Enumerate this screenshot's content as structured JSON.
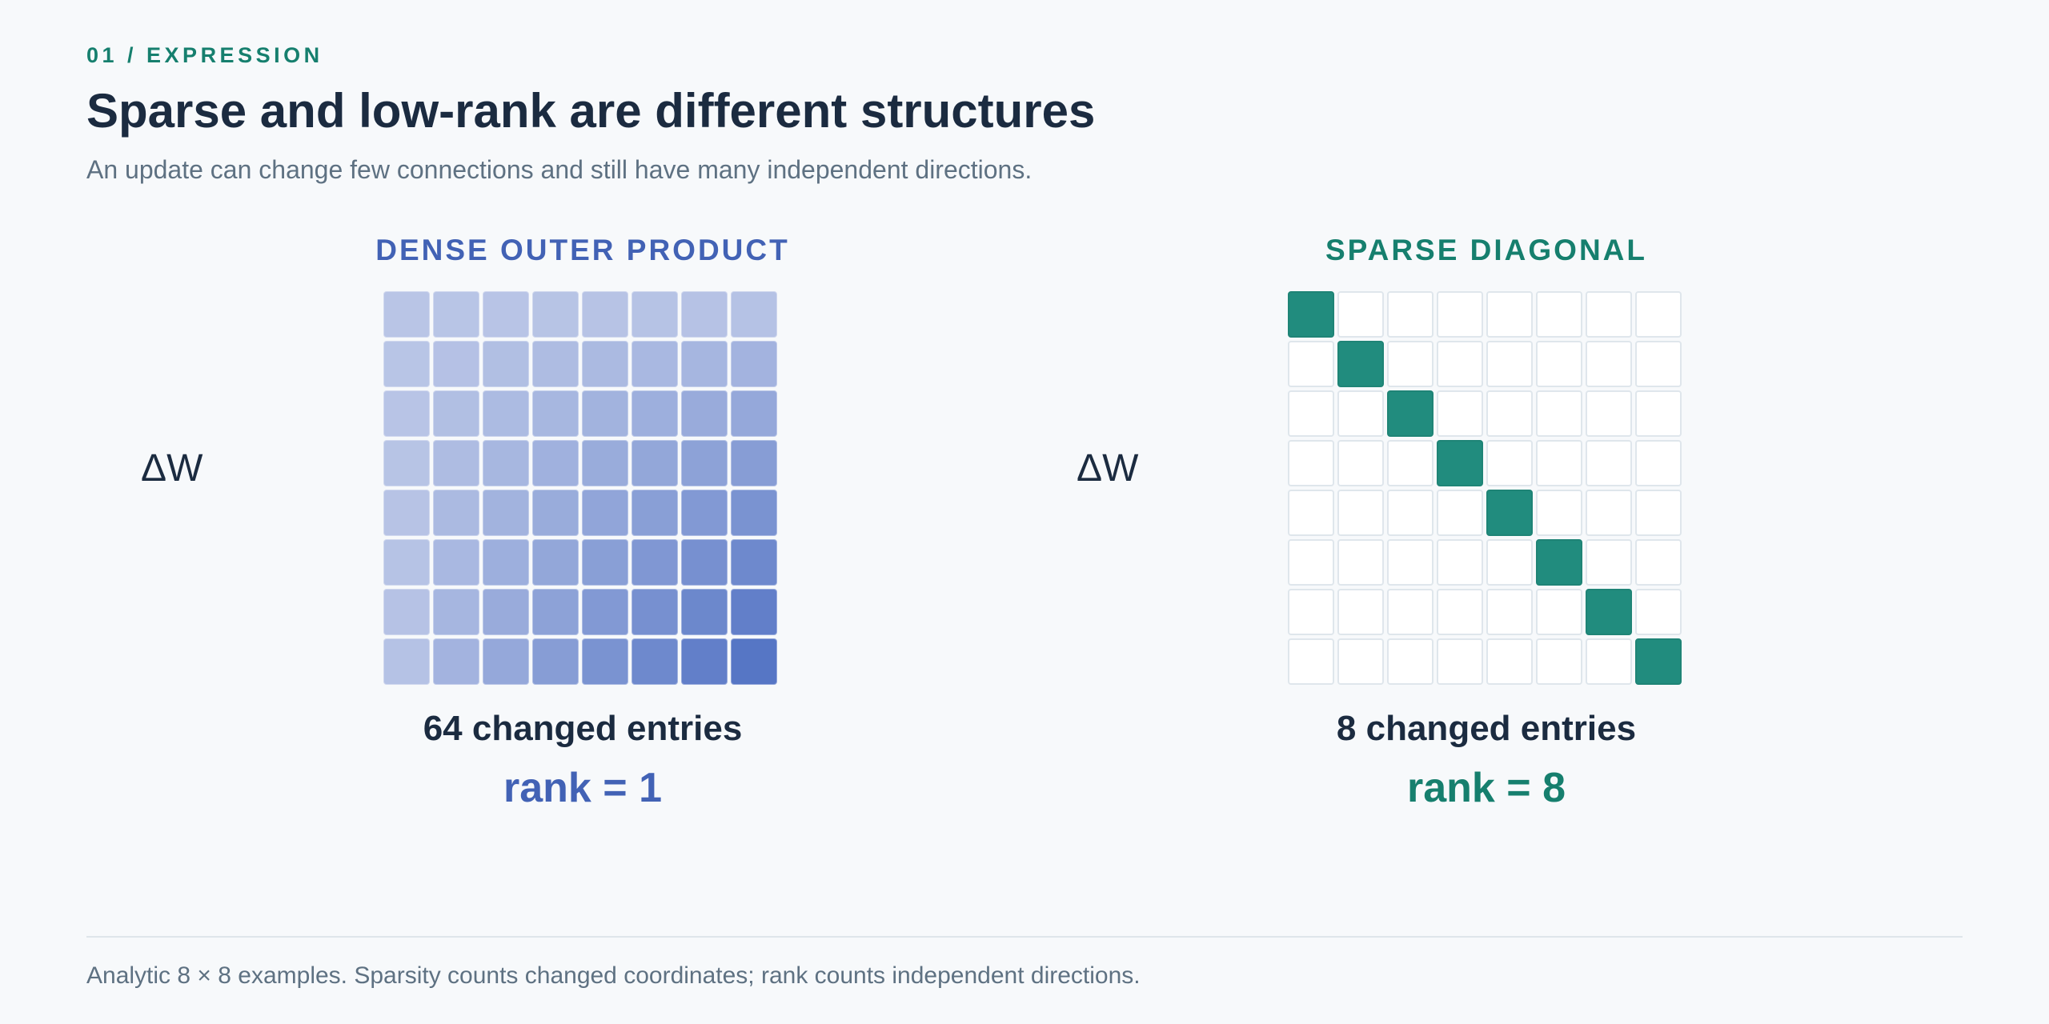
{
  "header": {
    "eyebrow": "01 / EXPRESSION",
    "title": "Sparse and low-rank are different structures",
    "subtitle": "An update can change few connections and still have many independent directions."
  },
  "colors": {
    "accent_teal": "#167f6e",
    "accent_blue": "#4262b5",
    "text_dark": "#1b2b40",
    "text_muted": "#5e7182"
  },
  "panels": {
    "dense": {
      "label": "DENSE OUTER PRODUCT",
      "matrix_symbol": "ΔW",
      "size": 8,
      "changed_entries": "64 changed entries",
      "rank": "rank = 1"
    },
    "sparse": {
      "label": "SPARSE DIAGONAL",
      "matrix_symbol": "ΔW",
      "size": 8,
      "changed_entries": "8 changed entries",
      "rank": "rank = 8"
    }
  },
  "footer": {
    "note": "Analytic 8 × 8 examples. Sparsity counts changed coordinates; rank counts independent directions."
  }
}
